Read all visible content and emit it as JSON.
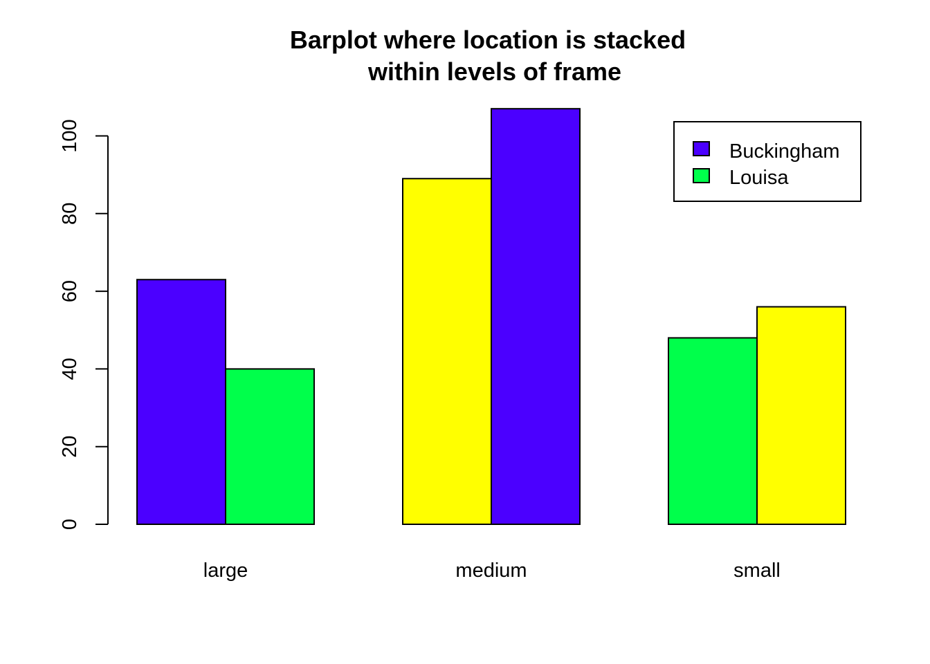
{
  "chart_data": {
    "type": "bar",
    "title_lines": [
      "Barplot where location is stacked",
      "within levels of frame"
    ],
    "xlabel": "",
    "ylabel": "",
    "categories": [
      "large",
      "medium",
      "small"
    ],
    "bars": [
      [
        {
          "value": 63,
          "color": "#4B00FF"
        },
        {
          "value": 40,
          "color": "#00FF4B"
        }
      ],
      [
        {
          "value": 89,
          "color": "#FFFF00"
        },
        {
          "value": 107,
          "color": "#4B00FF"
        }
      ],
      [
        {
          "value": 48,
          "color": "#00FF4B"
        },
        {
          "value": 56,
          "color": "#FFFF00"
        }
      ]
    ],
    "y_ticks": [
      0,
      20,
      40,
      60,
      80,
      100
    ],
    "ylim": [
      0,
      107
    ],
    "grid": false,
    "legend": {
      "placement": "top-right",
      "entries": [
        {
          "name": "Buckingham",
          "color": "#4B00FF"
        },
        {
          "name": "Louisa",
          "color": "#00FF4B"
        }
      ]
    }
  }
}
